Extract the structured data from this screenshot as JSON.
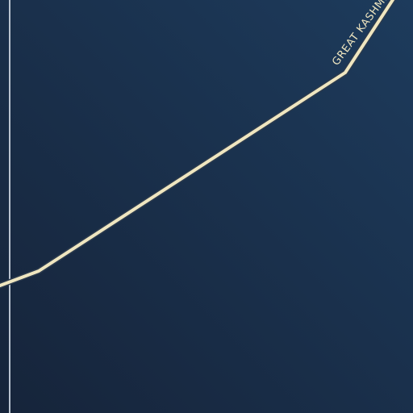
{
  "map": {
    "colors": {
      "background_top": "#1d3b5c",
      "background_bottom": "#16243a",
      "road": "#efe6c0",
      "road_casing": "#2c3b4e",
      "boundary": "#b8c2cf",
      "label": "#efe6c0"
    },
    "roads": [
      {
        "name": "GREAT KASHMIR",
        "type": "highway"
      }
    ],
    "boundary": {
      "type": "vertical-line"
    }
  }
}
